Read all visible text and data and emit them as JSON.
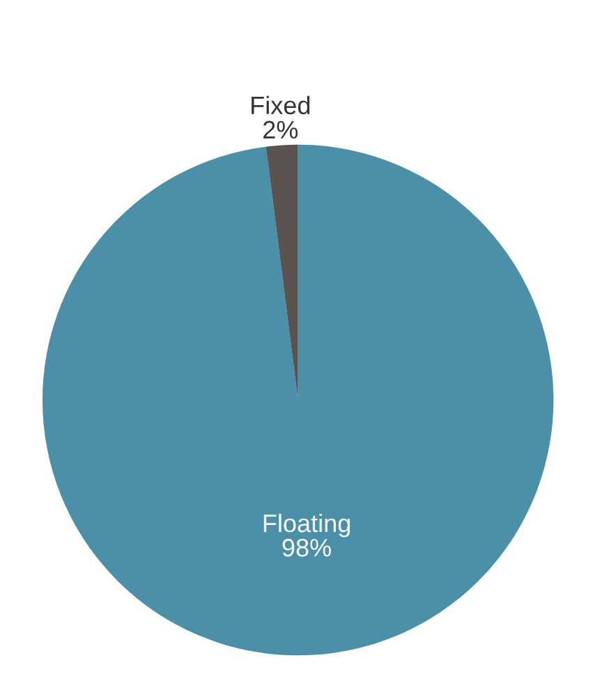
{
  "chart_data": {
    "type": "pie",
    "categories": [
      "Floating",
      "Fixed"
    ],
    "values": [
      98,
      2
    ],
    "value_labels": [
      "98%",
      "2%"
    ],
    "colors": [
      "#4b8fa9",
      "#5a5350"
    ]
  }
}
